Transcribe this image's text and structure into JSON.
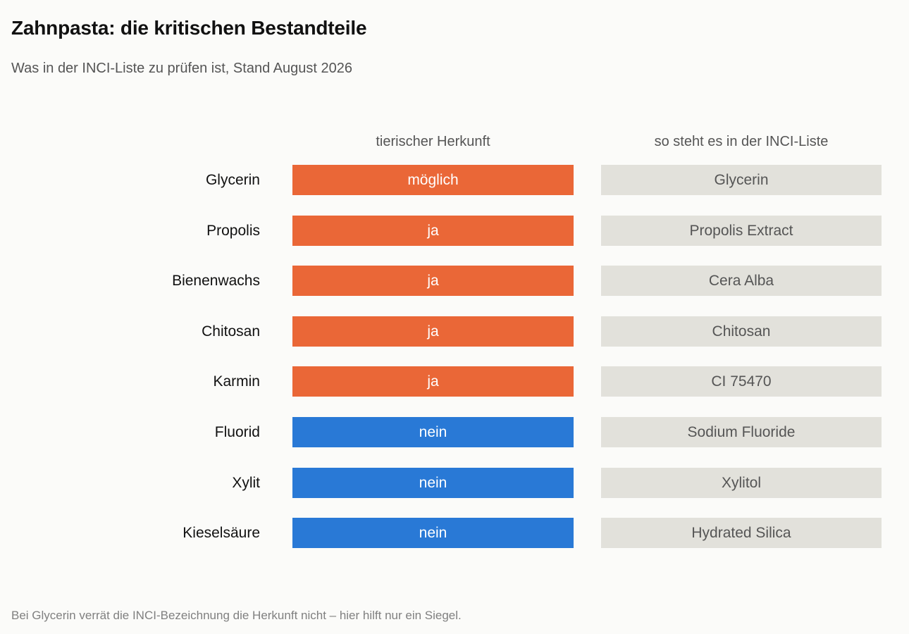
{
  "header": {
    "title": "Zahnpasta: die kritischen Bestandteile",
    "subtitle": "Was in der INCI-Liste zu prüfen ist, Stand August 2026"
  },
  "colors": {
    "ja": "#ea6737",
    "möglich": "#ea6737",
    "nein": "#2979d6",
    "inci_cell": "#e2e1db"
  },
  "chart_data": {
    "type": "table",
    "title": "Zahnpasta: die kritischen Bestandteile",
    "columns": [
      "tierischer Herkunft",
      "so steht es in der INCI-Liste"
    ],
    "rows": [
      {
        "name": "Glycerin",
        "origin": "möglich",
        "inci": "Glycerin"
      },
      {
        "name": "Propolis",
        "origin": "ja",
        "inci": "Propolis Extract"
      },
      {
        "name": "Bienenwachs",
        "origin": "ja",
        "inci": "Cera Alba"
      },
      {
        "name": "Chitosan",
        "origin": "ja",
        "inci": "Chitosan"
      },
      {
        "name": "Karmin",
        "origin": "ja",
        "inci": "CI 75470"
      },
      {
        "name": "Fluorid",
        "origin": "nein",
        "inci": "Sodium Fluoride"
      },
      {
        "name": "Xylit",
        "origin": "nein",
        "inci": "Xylitol"
      },
      {
        "name": "Kieselsäure",
        "origin": "nein",
        "inci": "Hydrated Silica"
      }
    ]
  },
  "footnote": "Bei Glycerin verrät die INCI-Bezeichnung die Herkunft nicht – hier hilft nur ein Siegel."
}
